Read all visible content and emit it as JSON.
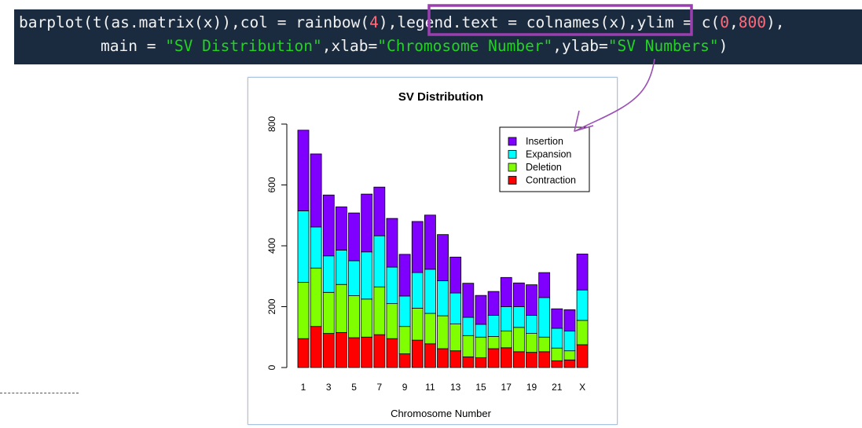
{
  "code": {
    "line1": {
      "fn": "barplot(t(as.matrix(x)),col = rainbow(",
      "num1": "4",
      "mid1": "),",
      "highlight": "legend.text = colnames(x)",
      "mid2": ",ylim = c(",
      "num2": "0",
      "comma": ",",
      "num3": "800",
      "end": "),"
    },
    "line2": {
      "start": "main = ",
      "str1": "\"SV Distribution\"",
      "mid1": ",xlab=",
      "str2": "\"Chromosome Number\"",
      "mid2": ",ylab=",
      "str3": "\"SV Numbers\"",
      "end": ")"
    }
  },
  "colors": {
    "highlight_box": "#9b3fb0",
    "arrow": "#9b4fb5"
  },
  "chart_data": {
    "type": "bar",
    "stacked": true,
    "title": "SV Distribution",
    "xlabel": "Chromosome Number",
    "ylabel": "",
    "ylim": [
      0,
      800
    ],
    "yticks": [
      "0",
      "200",
      "400",
      "600",
      "800"
    ],
    "categories": [
      "1",
      "2",
      "3",
      "4",
      "5",
      "6",
      "7",
      "8",
      "9",
      "10",
      "11",
      "12",
      "13",
      "14",
      "15",
      "16",
      "17",
      "18",
      "19",
      "20",
      "21",
      "22",
      "X"
    ],
    "visible_tick_labels": [
      "1",
      "3",
      "5",
      "7",
      "9",
      "11",
      "13",
      "15",
      "17",
      "19",
      "21",
      "X"
    ],
    "series": [
      {
        "name": "Contraction",
        "color": "#ff0000",
        "values": [
          95,
          135,
          112,
          115,
          98,
          100,
          108,
          95,
          45,
          90,
          78,
          62,
          55,
          35,
          32,
          62,
          65,
          52,
          50,
          52,
          22,
          25,
          75
        ]
      },
      {
        "name": "Deletion",
        "color": "#80ff00",
        "values": [
          185,
          192,
          135,
          158,
          138,
          125,
          157,
          115,
          90,
          105,
          100,
          108,
          88,
          70,
          68,
          40,
          55,
          80,
          62,
          48,
          42,
          30,
          80
        ]
      },
      {
        "name": "Expansion",
        "color": "#00ffff",
        "values": [
          235,
          135,
          120,
          113,
          115,
          155,
          168,
          120,
          100,
          117,
          145,
          115,
          102,
          60,
          42,
          70,
          80,
          68,
          60,
          130,
          65,
          65,
          100
        ]
      },
      {
        "name": "Insertion",
        "color": "#8000ff",
        "values": [
          265,
          240,
          200,
          142,
          157,
          190,
          160,
          160,
          137,
          168,
          178,
          152,
          118,
          112,
          95,
          78,
          96,
          78,
          100,
          82,
          64,
          70,
          118
        ]
      }
    ],
    "legend": {
      "position": "top-right",
      "entries": [
        "Insertion",
        "Expansion",
        "Deletion",
        "Contraction"
      ]
    }
  }
}
